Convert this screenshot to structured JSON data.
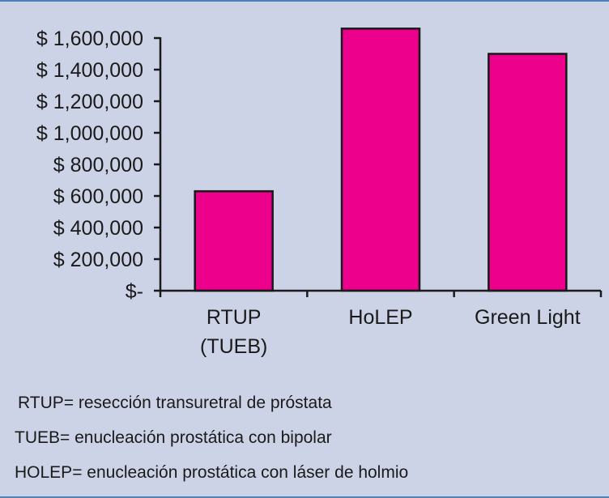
{
  "chart_data": {
    "type": "bar",
    "categories": [
      [
        "RTUP",
        "(TUEB)"
      ],
      [
        "HoLEP"
      ],
      [
        "Green Light"
      ]
    ],
    "values": [
      630000,
      1660000,
      1500000
    ],
    "ylim": [
      0,
      1600000
    ],
    "yticks": [
      0,
      200000,
      400000,
      600000,
      800000,
      1000000,
      1200000,
      1400000,
      1600000
    ],
    "ytick_labels": [
      "$-",
      "$ 200,000",
      "$ 400,000",
      "$ 600,000",
      "$ 800,000",
      "$ 1,000,000",
      "$ 1,200,000",
      "$ 1,400,000",
      "$ 1,600,000"
    ],
    "title": "",
    "xlabel": "",
    "ylabel": "",
    "bar_color": "#ec008c",
    "bar_edge_color": "#1a1a1a",
    "grid": false,
    "legend": "none"
  },
  "notes": [
    "RTUP= resección transuretral de próstata",
    "TUEB= enucleación prostática con bipolar",
    "HOLEP= enucleación prostática con láser de holmio"
  ],
  "colors": {
    "background": "#cdd3e6",
    "frame": "#4f7fb8"
  }
}
